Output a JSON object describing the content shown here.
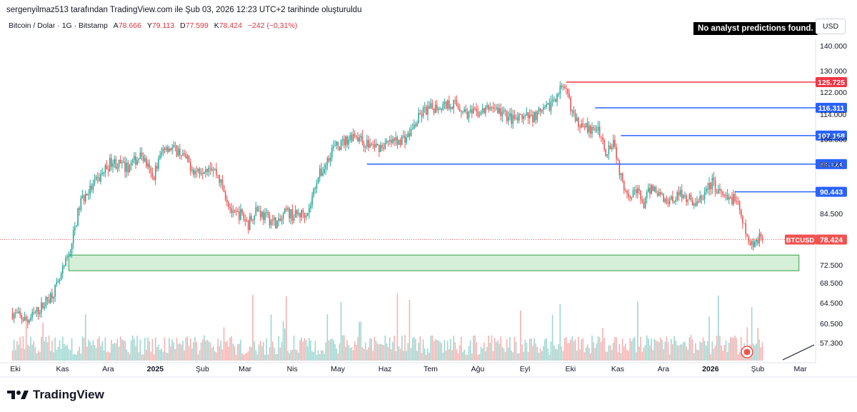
{
  "header": {
    "caption": "sergenyilmaz513 tarafından TradingView.com ile Şub 03, 2026 12:23 UTC+2 tarihinde oluşturuldu"
  },
  "legend": {
    "symbol": "Bitcoin / Dolar · 1G · Bitstamp",
    "open_label": "A",
    "open": "78.666",
    "high_label": "Y",
    "high": "79.113",
    "low_label": "D",
    "low": "77.599",
    "close_label": "K",
    "close": "78.424",
    "change": "−242 (−0,31%)"
  },
  "notice": "No analyst predictions found.",
  "currency": "USD",
  "brand": {
    "name": "TradingView",
    "icon": "tradingview-logo-icon"
  },
  "colors": {
    "up": "#26a69a",
    "down": "#ef5350",
    "resistance_red": "#f23645",
    "level_blue": "#2962ff",
    "zone_fill": "#d6efd8",
    "zone_border": "#2ea043"
  },
  "chart_data": {
    "type": "candlestick",
    "title": "Bitcoin / Dolar · 1G · Bitstamp",
    "ylim": [
      55000,
      147000
    ],
    "y_ticks": [
      "140.000",
      "130.000",
      "122.000",
      "114.000",
      "106.000",
      "98.000",
      "84.500",
      "72.500",
      "68.500",
      "64.500",
      "60.500",
      "57.300"
    ],
    "y_tick_values": [
      140000,
      130000,
      122000,
      114000,
      106000,
      98000,
      84500,
      72500,
      68500,
      64500,
      60500,
      57300
    ],
    "x_ticks": [
      "Eki",
      "Kas",
      "Ara",
      "2025",
      "Şub",
      "Mar",
      "Nis",
      "May",
      "Haz",
      "Tem",
      "Ağu",
      "Eyl",
      "Eki",
      "Kas",
      "Ara",
      "2026",
      "Şub",
      "Mar"
    ],
    "x_tick_bold": [
      "2025",
      "2026"
    ],
    "x_tick_days": [
      0,
      31,
      61,
      92,
      123,
      151,
      182,
      212,
      243,
      273,
      304,
      335,
      365,
      396,
      426,
      457,
      488,
      516
    ],
    "price_path_days": [
      0,
      10,
      20,
      30,
      33,
      38,
      45,
      55,
      65,
      75,
      85,
      92,
      100,
      110,
      120,
      130,
      135,
      145,
      150,
      155,
      160,
      165,
      170,
      175,
      180,
      185,
      190,
      195,
      200,
      205,
      210,
      215,
      220,
      225,
      230,
      240,
      250,
      260,
      270,
      280,
      290,
      300,
      310,
      315,
      320,
      330,
      340,
      350,
      360,
      365,
      370,
      375,
      380,
      385,
      390,
      395,
      400,
      405,
      410,
      415,
      420,
      430,
      440,
      450,
      460,
      465,
      470,
      475,
      480,
      485,
      490,
      493
    ],
    "price_path_values": [
      62500,
      61000,
      64000,
      68000,
      71000,
      76000,
      88000,
      93000,
      99000,
      97000,
      101000,
      94000,
      104000,
      102000,
      96000,
      98000,
      95000,
      84000,
      84500,
      82000,
      86000,
      84000,
      83000,
      82000,
      85000,
      84000,
      84500,
      85500,
      94000,
      97000,
      103000,
      104000,
      106000,
      108000,
      105000,
      103500,
      105000,
      107000,
      115000,
      117000,
      118000,
      114000,
      115000,
      117000,
      115000,
      112000,
      113000,
      115000,
      123000,
      121000,
      111000,
      112000,
      108000,
      110000,
      102000,
      106000,
      94000,
      90000,
      91000,
      87000,
      92000,
      88000,
      90000,
      87000,
      93000,
      90000,
      88000,
      89000,
      82000,
      77000,
      78700,
      78424
    ],
    "close": 78424,
    "last_price_label": "78.424",
    "symbol_tag": "BTCUSD",
    "horizontal_levels": [
      {
        "value": 125725,
        "label": "125.725",
        "color": "#f23645",
        "start_day": 364
      },
      {
        "value": 116311,
        "label": "116.311",
        "color": "#2962ff",
        "start_day": 383
      },
      {
        "value": 107158,
        "label": "107.158",
        "color": "#2962ff",
        "start_day": 400
      },
      {
        "value": 98024,
        "label": "98.024",
        "color": "#2962ff",
        "start_day": 233
      },
      {
        "value": 90443,
        "label": "90.443",
        "color": "#2962ff",
        "start_day": 475
      }
    ],
    "support_zone": {
      "low": 71200,
      "high": 74800,
      "start_day": 37,
      "end_day": 517
    },
    "volume": "shown as bars at bottom, red for down days and teal for up days"
  }
}
